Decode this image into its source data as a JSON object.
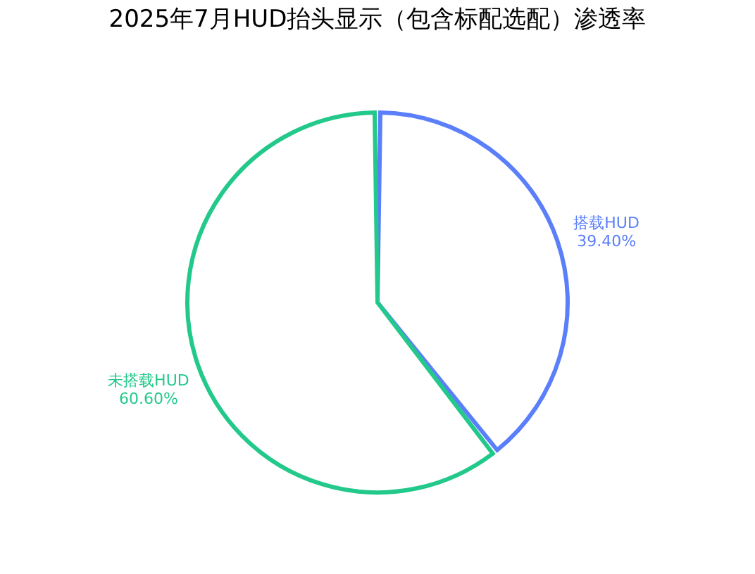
{
  "chart_data": {
    "type": "pie",
    "title": "2025年7月HUD抬头显示（包含标配选配）渗透率",
    "categories": [
      "搭载HUD",
      "未搭载HUD"
    ],
    "values": [
      39.4,
      60.6
    ],
    "value_labels": [
      "39.40%",
      "60.60%"
    ],
    "colors": [
      "#5b7ffa",
      "#22c98a"
    ],
    "legend": false
  }
}
